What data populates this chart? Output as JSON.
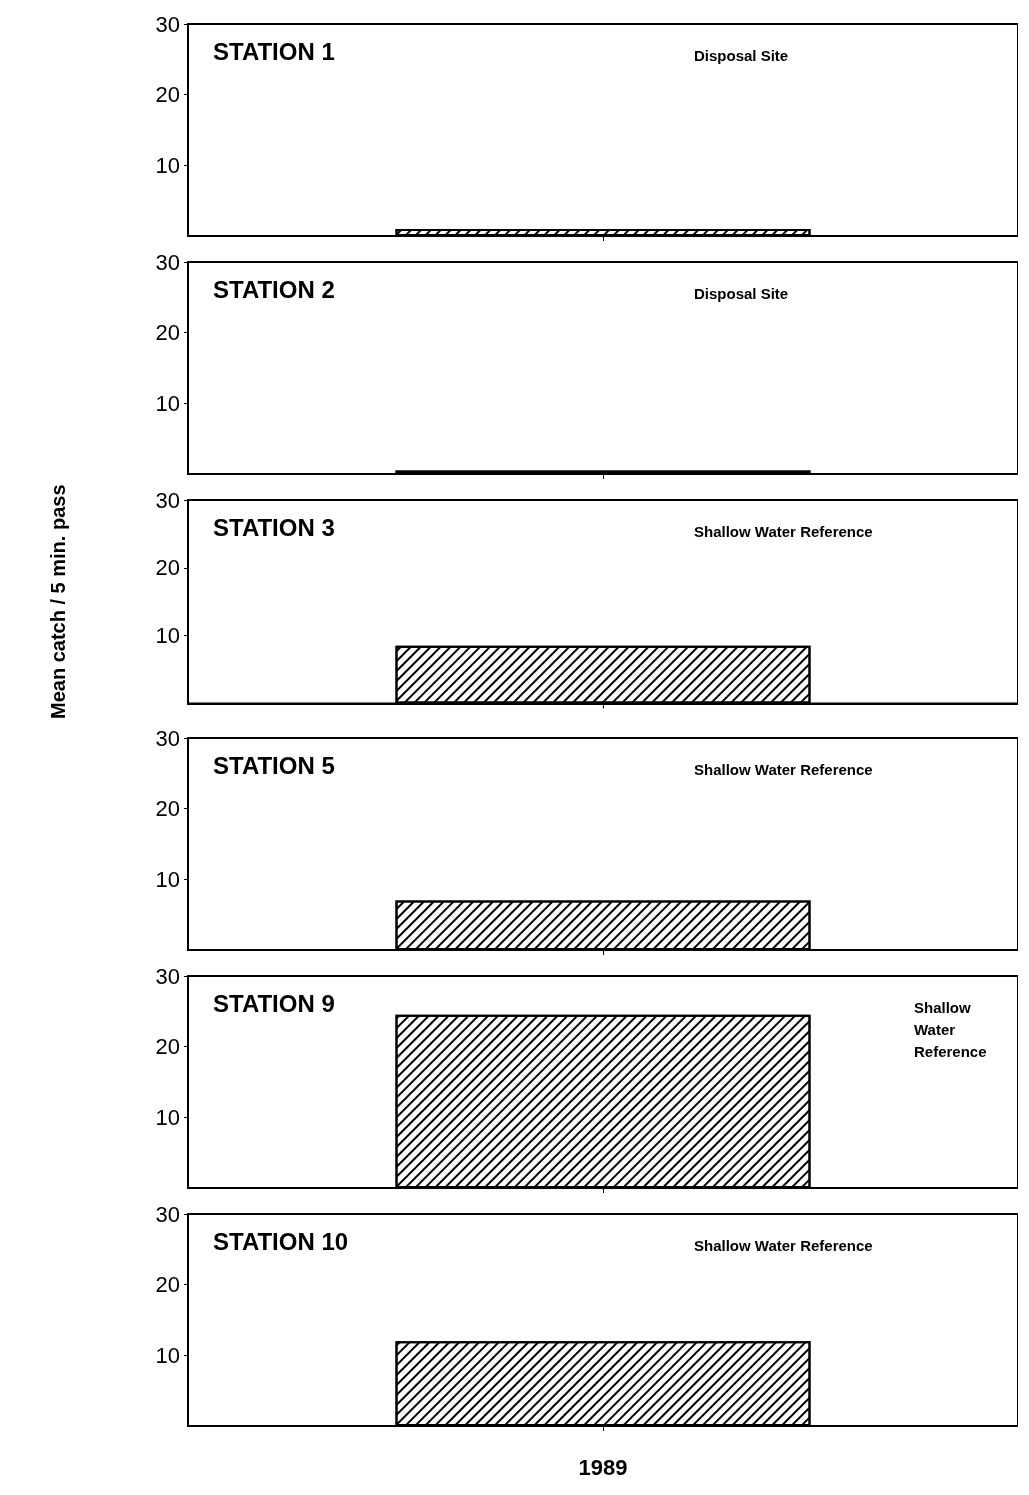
{
  "chart_data": [
    {
      "type": "bar",
      "title": "STATION 1",
      "annotations": [
        "Disposal Site"
      ],
      "categories": [
        null
      ],
      "values": [
        1
      ],
      "color": "#000000",
      "ylim": [
        0,
        30
      ],
      "yticks": [
        10,
        20,
        30
      ],
      "grid": false,
      "tick_labels": "y"
    },
    {
      "type": "bar",
      "title": "STATION 2",
      "annotations": [
        "Disposal Site"
      ],
      "categories": [
        null
      ],
      "values": [
        0.5
      ],
      "color": "#000000",
      "ylim": [
        0,
        30
      ],
      "yticks": [
        10,
        20,
        30
      ],
      "grid": false,
      "tick_labels": "y"
    },
    {
      "type": "bar",
      "title": "STATION 3",
      "annotations": [
        "Shallow Water Reference"
      ],
      "ylabel": "Mean catch / 5 min. pass",
      "categories": [
        null
      ],
      "values": [
        8.5
      ],
      "color": "#000000",
      "ylim": [
        0,
        30
      ],
      "yticks": [
        10,
        20,
        30
      ],
      "grid": false,
      "tick_labels": "y"
    },
    {
      "type": "bar",
      "title": "STATION 5",
      "annotations": [
        "Shallow Water Reference"
      ],
      "categories": [
        null
      ],
      "values": [
        7
      ],
      "color": "#000000",
      "ylim": [
        0,
        30
      ],
      "yticks": [
        10,
        20,
        30
      ],
      "grid": false,
      "tick_labels": "y"
    },
    {
      "type": "bar",
      "title": "STATION 9",
      "annotations": [
        "Shallow Water Reference"
      ],
      "categories": [
        null
      ],
      "values": [
        24.5
      ],
      "color": "#000000",
      "ylim": [
        0,
        30
      ],
      "yticks": [
        10,
        20,
        30
      ],
      "grid": false,
      "tick_labels": "y"
    },
    {
      "type": "bar",
      "title": "STATION 10",
      "annotations": [
        "Shallow Water Reference"
      ],
      "xlabel": "1989",
      "categories": [
        null
      ],
      "values": [
        12
      ],
      "color": "#000000",
      "ylim": [
        0,
        30
      ],
      "yticks": [
        10,
        20,
        30
      ],
      "grid": false,
      "tick_labels": "y"
    }
  ]
}
